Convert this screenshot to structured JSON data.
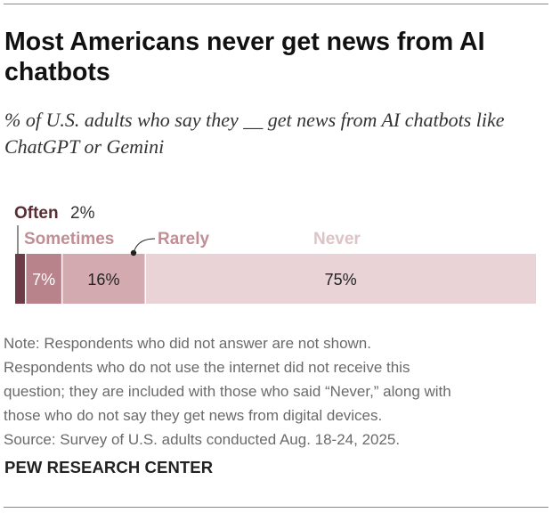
{
  "header": {
    "title": "Most Americans never get news from AI chatbots",
    "subtitle": "% of U.S. adults who say they __ get news from AI chatbots like ChatGPT or Gemini"
  },
  "chart_data": {
    "type": "bar",
    "orientation": "horizontal",
    "stacked": true,
    "categories": [
      "Often",
      "Sometimes",
      "Rarely",
      "Never"
    ],
    "values": [
      2,
      7,
      16,
      75
    ],
    "data_labels": [
      "2%",
      "7%",
      "16%",
      "75%"
    ],
    "colors": [
      "#6e3c46",
      "#b9838b",
      "#d3aab0",
      "#e9d3d6"
    ],
    "label_colors": [
      "#5a2c36",
      "#c08f96",
      "#c08f96",
      "#dcc3c7"
    ],
    "text_colors": [
      "#ffffff",
      "#ffffff",
      "#222222",
      "#222222"
    ],
    "xlim": [
      0,
      100
    ],
    "title": "",
    "xlabel": "",
    "ylabel": ""
  },
  "notes": [
    "Note: Respondents who did not answer are not shown.",
    "Respondents who do not use the internet did not receive this",
    "question; they are included with those who said “Never,” along with",
    "those who do not say they get news from digital devices.",
    "Source: Survey of U.S. adults conducted Aug. 18-24, 2025."
  ],
  "brand": "PEW RESEARCH CENTER"
}
